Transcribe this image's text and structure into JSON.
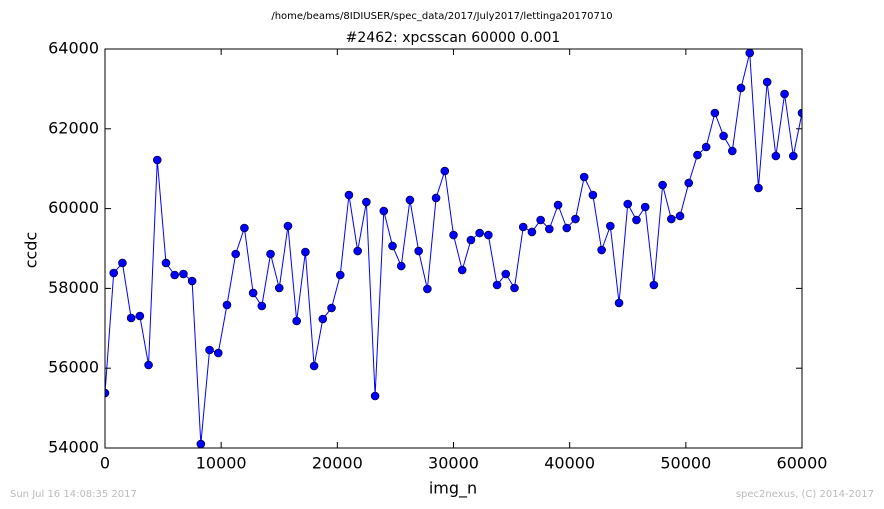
{
  "chart_data": {
    "type": "line",
    "suptitle": "/home/beams/8IDIUSER/spec_data/2017/July2017/lettinga20170710",
    "title": "#2462: xpcsscan 60000 0.001",
    "xlabel": "img_n",
    "ylabel": "ccdc",
    "footer_left": "Sun Jul 16 14:08:35 2017",
    "footer_right": "spec2nexus, (C) 2014-2017",
    "xlim": [
      0,
      60000
    ],
    "ylim": [
      54000,
      64000
    ],
    "xticks": [
      0,
      10000,
      20000,
      30000,
      40000,
      50000,
      60000
    ],
    "yticks": [
      54000,
      56000,
      58000,
      60000,
      62000,
      64000
    ],
    "grid": false,
    "x": [
      0,
      750,
      1500,
      2250,
      3000,
      3750,
      4500,
      5250,
      6000,
      6750,
      7500,
      8250,
      9000,
      9750,
      10500,
      11250,
      12000,
      12750,
      13500,
      14250,
      15000,
      15750,
      16500,
      17250,
      18000,
      18750,
      19500,
      20250,
      21000,
      21750,
      22500,
      23250,
      24000,
      24750,
      25500,
      26250,
      27000,
      27750,
      28500,
      29250,
      30000,
      30750,
      31500,
      32250,
      33000,
      33750,
      34500,
      35250,
      36000,
      36750,
      37500,
      38250,
      39000,
      39750,
      40500,
      41250,
      42000,
      42750,
      43500,
      44250,
      45000,
      45750,
      46500,
      47250,
      48000,
      48750,
      49500,
      50250,
      51000,
      51750,
      52500,
      53250,
      54000,
      54750,
      55500,
      56250,
      57000,
      57750,
      58500,
      59250,
      60000
    ],
    "series": [
      {
        "name": "ccdc",
        "color": "#0000ff",
        "values": [
          55378,
          58386,
          58637,
          57258,
          57308,
          56080,
          61218,
          58637,
          58336,
          58361,
          58185,
          54100,
          56456,
          56381,
          57584,
          58862,
          59514,
          57885,
          57559,
          58862,
          58010,
          59564,
          57183,
          58912,
          56055,
          57233,
          57509,
          58336,
          60341,
          58937,
          60165,
          55303,
          59940,
          59063,
          58561,
          60216,
          58937,
          57985,
          60266,
          60942,
          59338,
          58461,
          59213,
          59388,
          59338,
          58085,
          58361,
          58010,
          59539,
          59414,
          59714,
          59489,
          60090,
          59514,
          59739,
          60792,
          60341,
          58962,
          59564,
          57634,
          60115,
          59714,
          60040,
          58085,
          60591,
          59739,
          59815,
          60642,
          61343,
          61544,
          62396,
          61820,
          61444,
          63023,
          63900,
          60516,
          63173,
          61318,
          62872,
          61318,
          62396
        ]
      }
    ]
  }
}
